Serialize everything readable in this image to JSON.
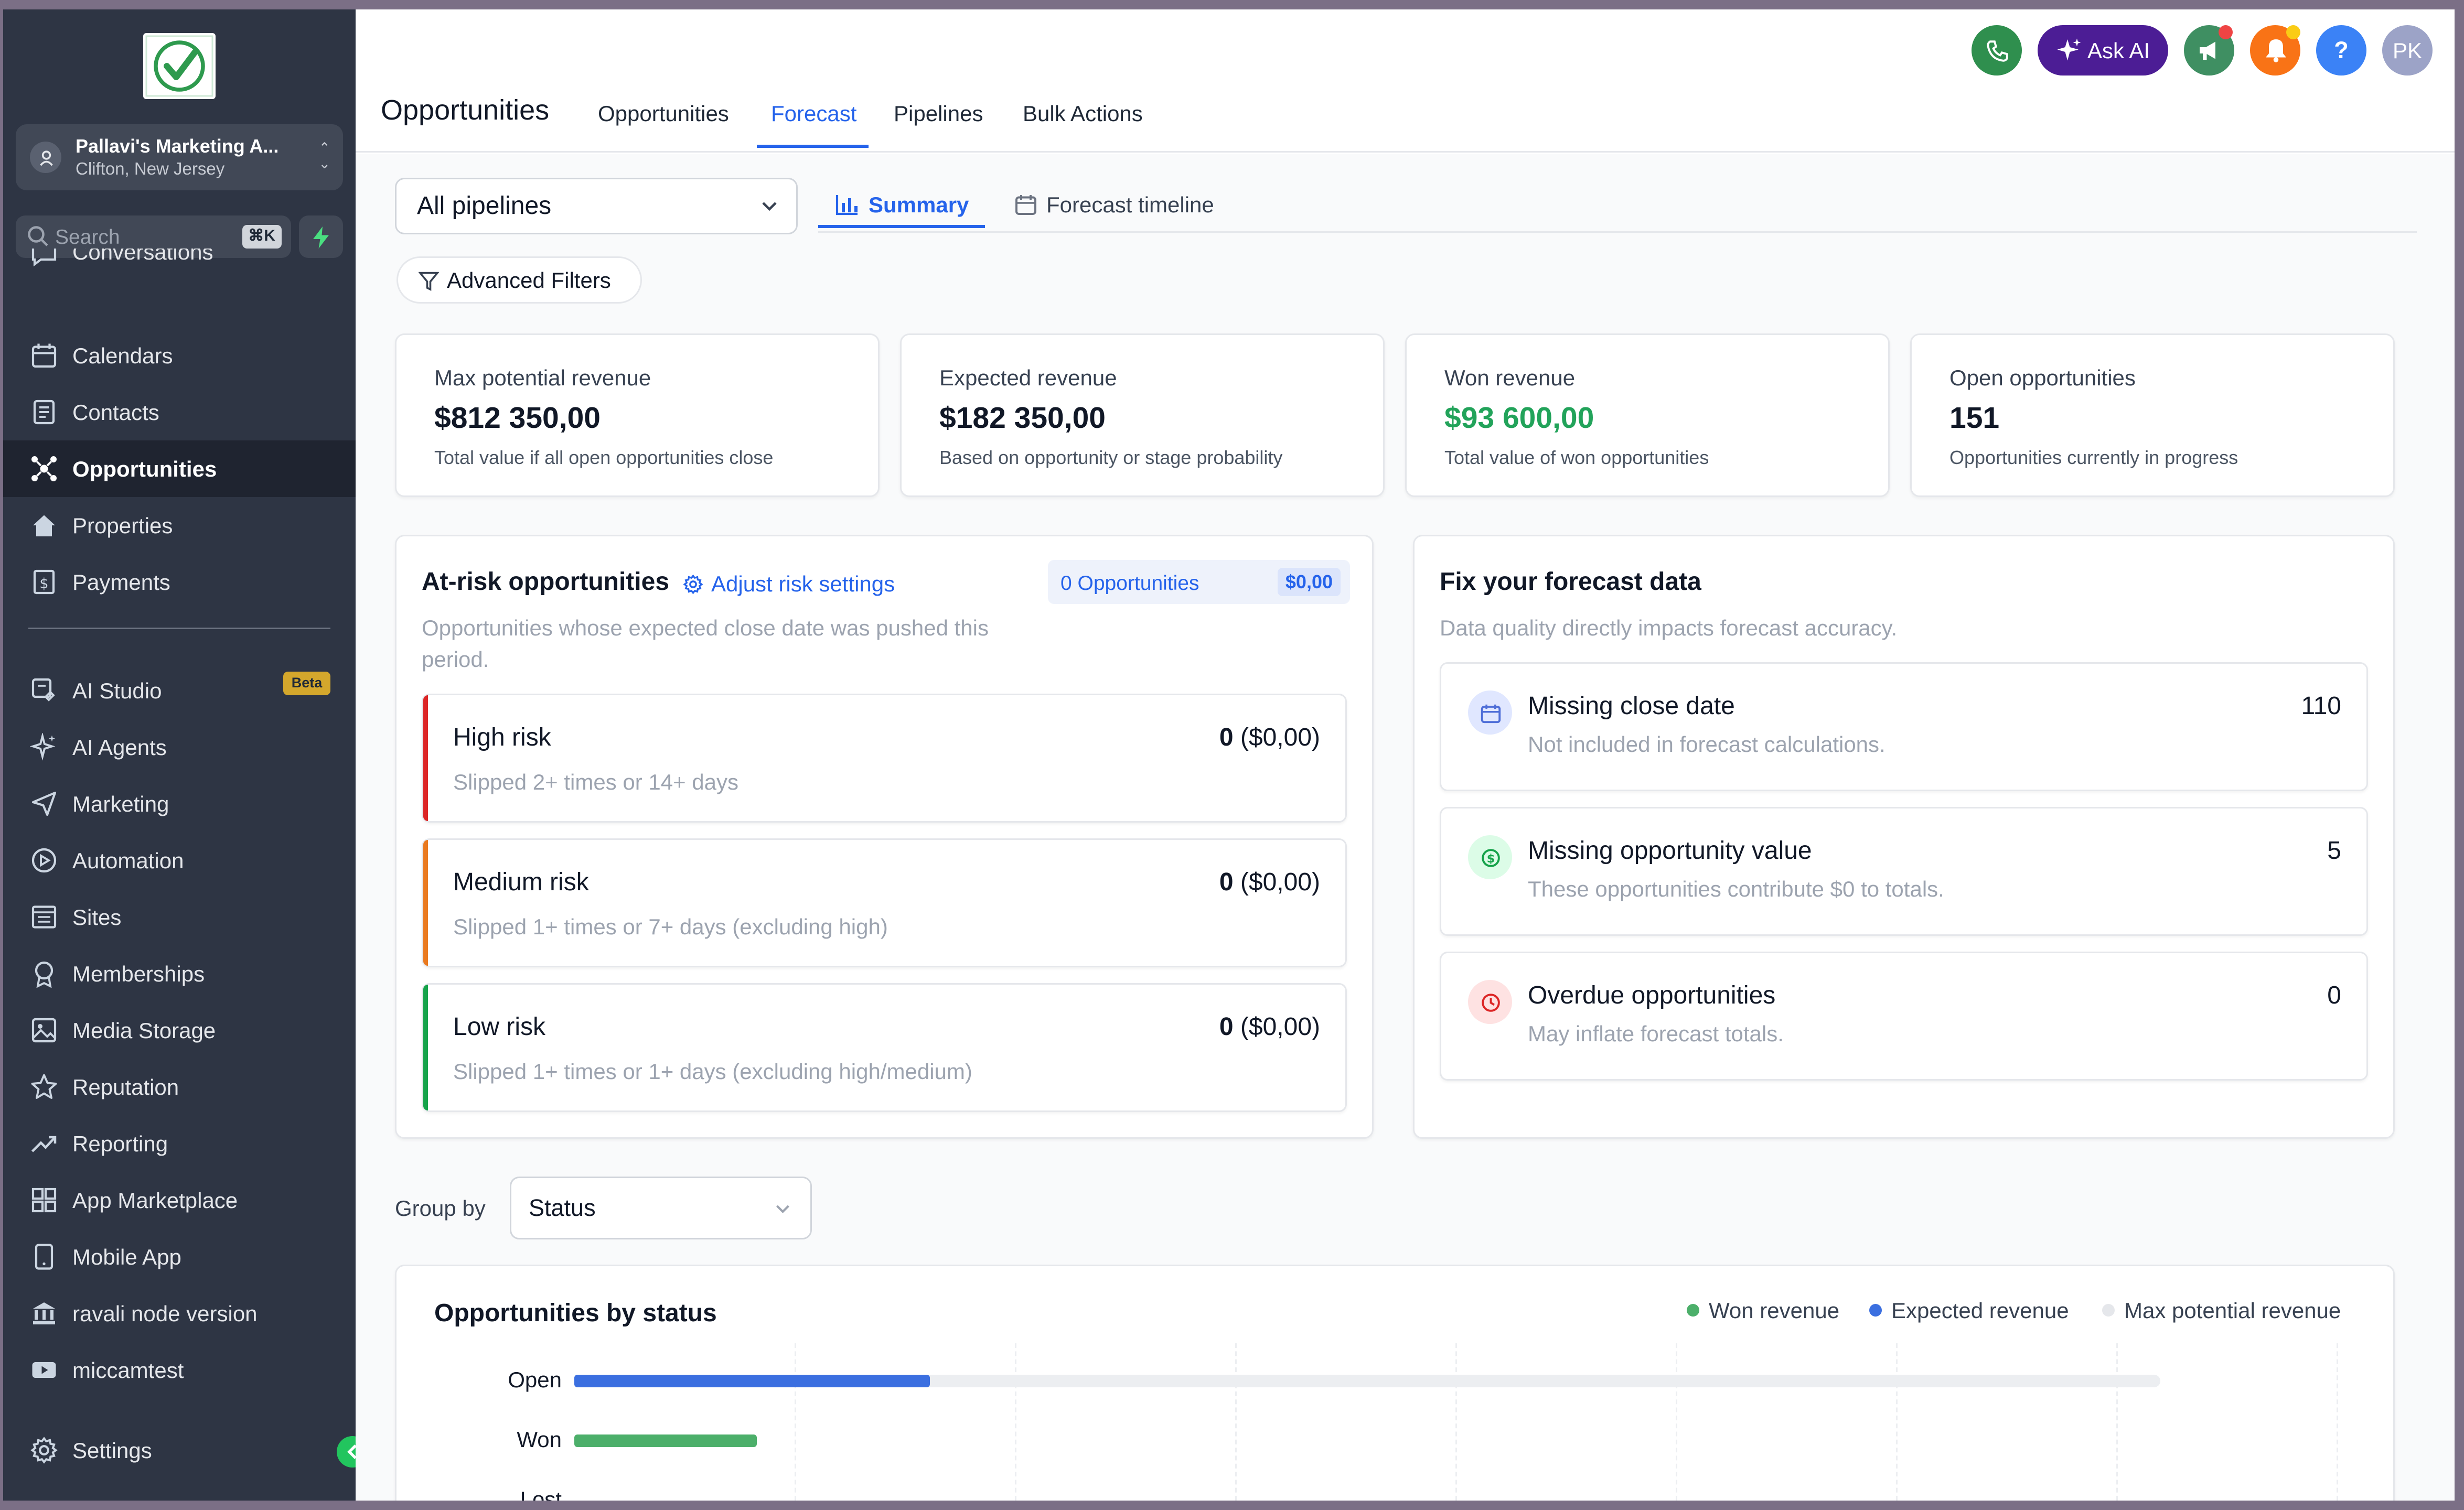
{
  "sidebar": {
    "account": {
      "name": "Pallavi's Marketing A...",
      "location": "Clifton, New Jersey"
    },
    "search": {
      "placeholder": "Search",
      "shortcut": "⌘K"
    },
    "items": [
      {
        "label": "Conversations",
        "icon": "chat-icon"
      },
      {
        "label": "Calendars",
        "icon": "calendar-icon"
      },
      {
        "label": "Contacts",
        "icon": "contacts-icon"
      },
      {
        "label": "Opportunities",
        "icon": "opportunities-icon",
        "active": true
      },
      {
        "label": "Properties",
        "icon": "home-icon"
      },
      {
        "label": "Payments",
        "icon": "payments-icon"
      },
      {
        "label": "AI Studio",
        "icon": "ai-studio-icon",
        "badge": "Beta"
      },
      {
        "label": "AI Agents",
        "icon": "sparkle-icon"
      },
      {
        "label": "Marketing",
        "icon": "send-icon"
      },
      {
        "label": "Automation",
        "icon": "automation-icon"
      },
      {
        "label": "Sites",
        "icon": "sites-icon"
      },
      {
        "label": "Memberships",
        "icon": "membership-icon"
      },
      {
        "label": "Media Storage",
        "icon": "image-icon"
      },
      {
        "label": "Reputation",
        "icon": "star-icon"
      },
      {
        "label": "Reporting",
        "icon": "trend-icon"
      },
      {
        "label": "App Marketplace",
        "icon": "grid-icon"
      },
      {
        "label": "Mobile App",
        "icon": "mobile-icon"
      },
      {
        "label": "ravali node version",
        "icon": "bank-icon"
      },
      {
        "label": "miccamtest",
        "icon": "video-icon"
      }
    ],
    "settings": "Settings"
  },
  "header": {
    "title": "Opportunities",
    "tabs": [
      {
        "label": "Opportunities"
      },
      {
        "label": "Forecast",
        "active": true
      },
      {
        "label": "Pipelines"
      },
      {
        "label": "Bulk Actions"
      }
    ],
    "ask_ai": "Ask AI",
    "help": "?",
    "avatar": "PK"
  },
  "toolbar": {
    "pipeline": "All pipelines",
    "summary": "Summary",
    "timeline": "Forecast timeline",
    "filters": "Advanced Filters"
  },
  "kpis": [
    {
      "label": "Max potential revenue",
      "value": "$812 350,00",
      "sub": "Total value if all open opportunities close"
    },
    {
      "label": "Expected revenue",
      "value": "$182 350,00",
      "sub": "Based on opportunity or stage probability"
    },
    {
      "label": "Won revenue",
      "value": "$93 600,00",
      "sub": "Total value of won opportunities",
      "color": "#22a35a"
    },
    {
      "label": "Open opportunities",
      "value": "151",
      "sub": "Opportunities currently in progress"
    }
  ],
  "at_risk": {
    "title": "At-risk opportunities",
    "adjust": "Adjust risk settings",
    "badge_count": "0 Opportunities",
    "badge_value": "$0,00",
    "subtitle": "Opportunities whose expected close date was pushed this period.",
    "items": [
      {
        "title": "High risk",
        "sub": "Slipped 2+ times or 14+ days",
        "value_bold": "0",
        "value_rest": " ($0,00)",
        "color": "#dc2626"
      },
      {
        "title": "Medium risk",
        "sub": "Slipped 1+ times or 7+ days (excluding high)",
        "value_bold": "0",
        "value_rest": " ($0,00)",
        "color": "#ea7a1f"
      },
      {
        "title": "Low risk",
        "sub": "Slipped 1+ times or 1+ days (excluding high/medium)",
        "value_bold": "0",
        "value_rest": " ($0,00)",
        "color": "#16a34a"
      }
    ]
  },
  "fix": {
    "title": "Fix your forecast data",
    "subtitle": "Data quality directly impacts forecast accuracy.",
    "items": [
      {
        "title": "Missing close date",
        "sub": "Not included in forecast calculations.",
        "value": "110",
        "icon": "calendar-icon"
      },
      {
        "title": "Missing opportunity value",
        "sub": "These opportunities contribute $0 to totals.",
        "value": "5",
        "icon": "dollar-icon"
      },
      {
        "title": "Overdue opportunities",
        "sub": "May inflate forecast totals.",
        "value": "0",
        "icon": "clock-icon"
      }
    ]
  },
  "group_by": {
    "label": "Group by",
    "value": "Status"
  },
  "chart_data": {
    "type": "bar",
    "orientation": "horizontal",
    "title": "Opportunities by status",
    "categories": [
      "Open",
      "Won",
      "Lost"
    ],
    "series": [
      {
        "name": "Won revenue",
        "color": "#4caf6a",
        "values": [
          0,
          93600,
          0
        ]
      },
      {
        "name": "Expected revenue",
        "color": "#3b6fe0",
        "values": [
          182350,
          0,
          0
        ]
      },
      {
        "name": "Max potential revenue",
        "color": "#eceef1",
        "values": [
          812350,
          0,
          0
        ]
      }
    ],
    "xlim": [
      0,
      900000
    ],
    "grid": true,
    "legend": "top-right"
  }
}
